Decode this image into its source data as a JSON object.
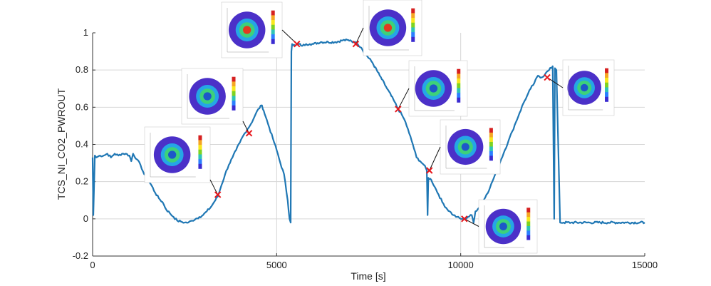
{
  "chart_data": {
    "type": "line",
    "xlabel": "Time [s]",
    "ylabel": "TCS_NI_CO2_PWROUT",
    "xlim": [
      0,
      15000
    ],
    "ylim": [
      -0.2,
      1
    ],
    "xticks": [
      0,
      5000,
      10000,
      15000
    ],
    "yticks": [
      -0.2,
      0,
      0.2,
      0.4,
      0.6,
      0.8,
      1
    ],
    "grid": true,
    "line_color": "#1f77b4",
    "marker_color": "#e8161b",
    "series": [
      {
        "x": [
          0,
          20,
          60,
          100,
          200,
          300,
          400,
          500,
          600,
          700,
          800,
          900,
          1000,
          1050,
          1100,
          1200,
          1300,
          1400,
          1500,
          1600,
          1700,
          1800,
          1900,
          2000,
          2100,
          2200,
          2300,
          2400,
          2500,
          2600,
          2700,
          2800,
          2900,
          3000,
          3100,
          3200,
          3300,
          3400,
          3500,
          3600,
          3700,
          3800,
          3900,
          4000,
          4100,
          4200,
          4300,
          4400,
          4500,
          4600,
          4650,
          4700,
          4800,
          4900,
          5000,
          5100,
          5200,
          5300,
          5350,
          5380,
          5400,
          5420,
          5500,
          5600,
          5700,
          5800,
          5900,
          6000,
          6200,
          6400,
          6600,
          6800,
          7000,
          7100,
          7200,
          7300,
          7400,
          7600,
          7800,
          8000,
          8200,
          8300,
          8400,
          8500,
          8600,
          8700,
          8800,
          8900,
          9000,
          9080,
          9100,
          9120,
          9200,
          9300,
          9400,
          9500,
          9600,
          9700,
          9800,
          9900,
          10000,
          10100,
          10200,
          10300,
          10350,
          10400,
          10500,
          10600,
          10700,
          10800,
          10900,
          11000,
          11100,
          11200,
          11300,
          11400,
          11500,
          11600,
          11700,
          11800,
          11900,
          12000,
          12100,
          12200,
          12300,
          12400,
          12500,
          12540,
          12560,
          12600,
          12700,
          12800,
          13000,
          13500,
          14000,
          14500,
          15000
        ],
        "y": [
          0.33,
          0.02,
          0.34,
          0.33,
          0.34,
          0.34,
          0.35,
          0.33,
          0.35,
          0.34,
          0.35,
          0.35,
          0.34,
          0.31,
          0.35,
          0.32,
          0.29,
          0.24,
          0.21,
          0.18,
          0.14,
          0.11,
          0.09,
          0.05,
          0.03,
          0.01,
          -0.01,
          -0.015,
          -0.02,
          -0.02,
          -0.01,
          0.0,
          0.01,
          0.02,
          0.04,
          0.06,
          0.09,
          0.12,
          0.18,
          0.24,
          0.29,
          0.33,
          0.37,
          0.41,
          0.45,
          0.48,
          0.51,
          0.55,
          0.59,
          0.61,
          0.58,
          0.55,
          0.49,
          0.43,
          0.37,
          0.3,
          0.24,
          0.1,
          0.0,
          -0.02,
          0.9,
          0.94,
          0.93,
          0.94,
          0.93,
          0.94,
          0.94,
          0.94,
          0.95,
          0.95,
          0.95,
          0.96,
          0.96,
          0.95,
          0.94,
          0.92,
          0.89,
          0.84,
          0.77,
          0.7,
          0.63,
          0.59,
          0.56,
          0.52,
          0.46,
          0.4,
          0.33,
          0.31,
          0.29,
          0.26,
          0.02,
          0.22,
          0.21,
          0.17,
          0.13,
          0.09,
          0.06,
          0.04,
          0.02,
          0.01,
          0.0,
          0.0,
          0.01,
          0.02,
          -0.02,
          0.04,
          0.06,
          0.09,
          0.13,
          0.17,
          0.22,
          0.27,
          0.32,
          0.37,
          0.42,
          0.47,
          0.52,
          0.57,
          0.62,
          0.66,
          0.7,
          0.73,
          0.77,
          0.76,
          0.78,
          0.8,
          0.82,
          0.0,
          0.81,
          0.8,
          -0.02,
          -0.02,
          -0.02,
          -0.02,
          -0.02,
          -0.02,
          -0.02
        ]
      }
    ],
    "markers": [
      {
        "x": 3400,
        "y": 0.13
      },
      {
        "x": 4250,
        "y": 0.46
      },
      {
        "x": 5550,
        "y": 0.94
      },
      {
        "x": 7150,
        "y": 0.94
      },
      {
        "x": 8300,
        "y": 0.59
      },
      {
        "x": 9150,
        "y": 0.26
      },
      {
        "x": 10100,
        "y": 0.0
      },
      {
        "x": 12350,
        "y": 0.76
      }
    ]
  }
}
